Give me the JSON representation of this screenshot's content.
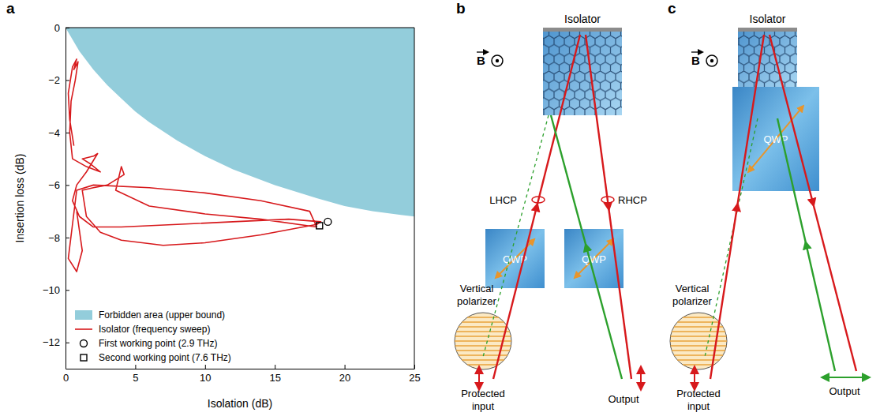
{
  "chart_data": {
    "type": "line",
    "panel_label": "a",
    "x_label": "Isolation (dB)",
    "y_label": "Insertion loss (dB)",
    "xlim": [
      0,
      25
    ],
    "ylim": [
      -13,
      0
    ],
    "xticks": [
      0,
      5,
      10,
      15,
      20,
      25
    ],
    "yticks": [
      {
        "value": -12,
        "label": "−12"
      },
      {
        "value": -10,
        "label": "−10"
      },
      {
        "value": -8,
        "label": "−8"
      },
      {
        "value": -6,
        "label": "−6"
      },
      {
        "value": -4,
        "label": "−4"
      },
      {
        "value": -2,
        "label": "−2"
      },
      0
    ],
    "legend": "lower left",
    "series": [
      {
        "name": "Forbidden area (upper bound)",
        "type": "area",
        "color": "#93cddb",
        "x": [
          0,
          1,
          2,
          3,
          4,
          5,
          6,
          8,
          10,
          12,
          15,
          18,
          20,
          22,
          25
        ],
        "values": [
          0,
          -0.9,
          -1.6,
          -2.2,
          -2.7,
          -3.2,
          -3.6,
          -4.3,
          -4.9,
          -5.4,
          -6.0,
          -6.5,
          -6.8,
          -7.0,
          -7.2
        ]
      },
      {
        "name": "Isolator (frequency sweep)",
        "type": "line",
        "color": "#d7191c",
        "x": [
          0.6,
          0.3,
          0.2,
          0.5,
          0.8,
          0.6,
          0.9,
          0.7,
          0.4,
          0.3,
          0.5,
          1.5,
          2.5,
          1.8,
          1.2,
          2.0,
          2.3,
          1.5,
          0.8,
          0.5,
          1.0,
          2.0,
          4.0,
          8.0,
          12.0,
          16.0,
          18.3,
          18.0,
          14.0,
          10.0,
          7.0,
          4.0,
          2.5,
          1.5,
          1.2,
          2.0,
          3.0,
          4.2,
          4.0,
          3.6,
          6.0,
          10.0,
          14.0,
          18.0,
          17.5,
          14.0,
          10.0,
          6.0,
          2.0,
          0.8,
          0.5,
          0.2,
          0.8,
          1.2,
          0.8
        ],
        "values": [
          -4.5,
          -3.5,
          -2.5,
          -1.5,
          -1.2,
          -1.6,
          -1.3,
          -2.0,
          -2.8,
          -4.0,
          -5.0,
          -5.3,
          -5.5,
          -5.2,
          -5.0,
          -4.9,
          -4.8,
          -5.5,
          -6.0,
          -6.6,
          -7.2,
          -7.6,
          -7.6,
          -7.5,
          -7.4,
          -7.3,
          -7.4,
          -7.5,
          -7.9,
          -8.2,
          -8.3,
          -8.1,
          -7.8,
          -7.2,
          -6.2,
          -6.1,
          -6.0,
          -5.6,
          -5.3,
          -6.2,
          -6.8,
          -7.1,
          -7.3,
          -7.6,
          -7.0,
          -6.6,
          -6.3,
          -6.1,
          -6.0,
          -6.2,
          -7.5,
          -8.8,
          -9.3,
          -8.5,
          -7.0
        ]
      },
      {
        "name": "First working point (2.9 THz)",
        "type": "scatter",
        "marker": "circle",
        "color": "#000000",
        "x": [
          18.8
        ],
        "values": [
          -7.4
        ]
      },
      {
        "name": "Second working point (7.6 THz)",
        "type": "scatter",
        "marker": "square",
        "color": "#000000",
        "x": [
          18.2
        ],
        "values": [
          -7.55
        ]
      }
    ]
  },
  "diagrams": [
    {
      "panel_label": "b",
      "isolator": "Isolator",
      "field": "B",
      "lhcp": "LHCP",
      "rhcp": "RHCP",
      "qwp": [
        "QWP",
        "QWP"
      ],
      "polarizer": "Vertical polarizer",
      "input": "Protected input",
      "output": "Output"
    },
    {
      "panel_label": "c",
      "isolator": "Isolator",
      "field": "B",
      "qwp": [
        "QWP"
      ],
      "polarizer": "Vertical polarizer",
      "input": "Protected input",
      "output": "Output"
    }
  ]
}
